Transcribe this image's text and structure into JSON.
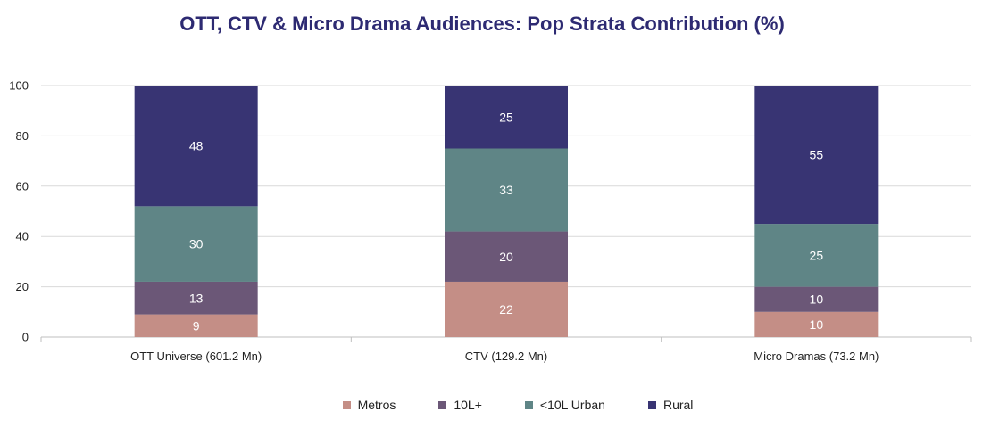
{
  "chart_data": {
    "type": "bar",
    "stacked": true,
    "title": "OTT, CTV & Micro Drama Audiences: Pop Strata Contribution (%)",
    "xlabel": "",
    "ylabel": "",
    "ylim": [
      0,
      100
    ],
    "yticks": [
      "0",
      "20",
      "40",
      "60",
      "80",
      "100"
    ],
    "grid": true,
    "legend_position": "bottom",
    "categories": [
      "OTT Universe (601.2 Mn)",
      "CTV (129.2 Mn)",
      "Micro Dramas (73.2 Mn)"
    ],
    "series": [
      {
        "name": "Metros",
        "color": "#c48e86",
        "values": [
          9,
          22,
          10
        ]
      },
      {
        "name": "10L+",
        "color": "#6b5777",
        "values": [
          13,
          20,
          10
        ]
      },
      {
        "name": "<10L Urban",
        "color": "#5f8586",
        "values": [
          30,
          33,
          25
        ]
      },
      {
        "name": "Rural",
        "color": "#383473",
        "values": [
          48,
          25,
          55
        ]
      }
    ]
  }
}
